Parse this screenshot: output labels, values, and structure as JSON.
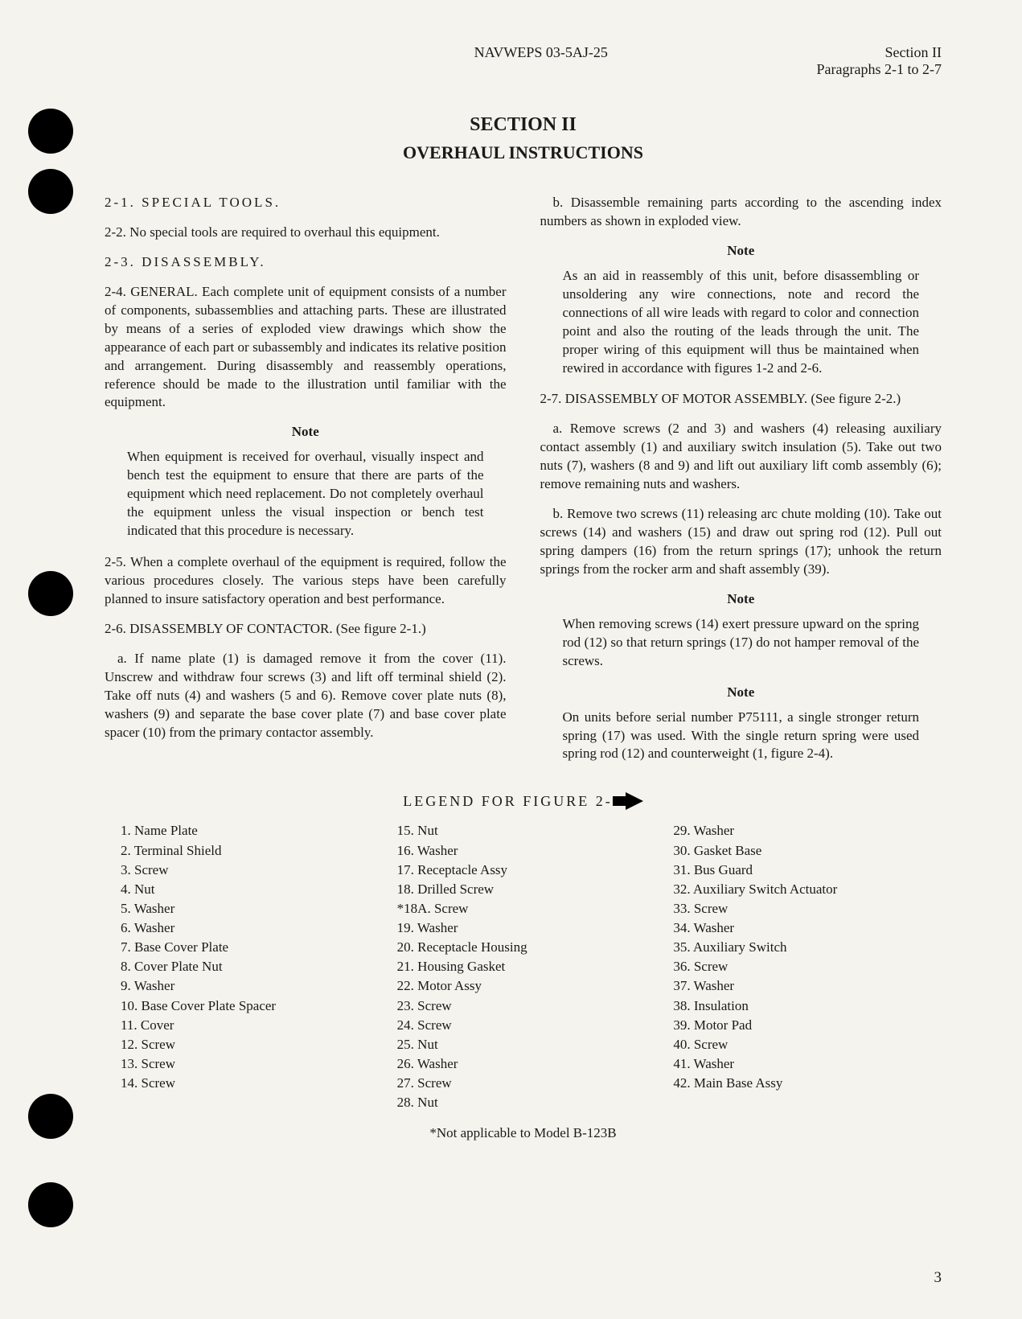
{
  "header": {
    "doc_id": "NAVWEPS 03-5AJ-25",
    "section": "Section II",
    "paragraphs": "Paragraphs 2-1 to 2-7"
  },
  "title": {
    "section": "SECTION II",
    "subtitle": "OVERHAUL INSTRUCTIONS"
  },
  "left_col": {
    "p21_heading": "2-1. SPECIAL TOOLS.",
    "p22": "2-2. No special tools are required to overhaul this equipment.",
    "p23_heading": "2-3. DISASSEMBLY.",
    "p24": "2-4. GENERAL. Each complete unit of equipment consists of a number of components, subassemblies and attaching parts. These are illustrated by means of a series of exploded view drawings which show the appearance of each part or subassembly and indicates its relative position and arrangement. During disassembly and reassembly operations, reference should be made to the illustration until familiar with the equipment.",
    "note1_label": "Note",
    "note1": "When equipment is received for overhaul, visually inspect and bench test the equipment to ensure that there are parts of the equipment which need replacement. Do not completely overhaul the equipment unless the visual inspection or bench test indicated that this procedure is necessary.",
    "p25": "2-5. When a complete overhaul of the equipment is required, follow the various procedures closely. The various steps have been carefully planned to insure satisfactory operation and best performance.",
    "p26": "2-6. DISASSEMBLY OF CONTACTOR. (See figure 2-1.)",
    "p26a": "a. If name plate (1) is damaged remove it from the cover (11). Unscrew and withdraw four screws (3) and lift off terminal shield (2). Take off nuts (4) and washers (5 and 6). Remove cover plate nuts (8), washers (9) and separate the base cover plate (7) and base cover plate spacer (10) from the primary contactor assembly."
  },
  "right_col": {
    "p26b": "b. Disassemble remaining parts according to the ascending index numbers as shown in exploded view.",
    "note2_label": "Note",
    "note2": "As an aid in reassembly of this unit, before disassembling or unsoldering any wire connections, note and record the connections of all wire leads with regard to color and connection point and also the routing of the leads through the unit. The proper wiring of this equipment will thus be maintained when rewired in accordance with figures 1-2 and 2-6.",
    "p27": "2-7. DISASSEMBLY OF MOTOR ASSEMBLY. (See figure 2-2.)",
    "p27a": "a. Remove screws (2 and 3) and washers (4) releasing auxiliary contact assembly (1) and auxiliary switch insulation (5). Take out two nuts (7), washers (8 and 9) and lift out auxiliary lift comb assembly (6); remove remaining nuts and washers.",
    "p27b": "b. Remove two screws (11) releasing arc chute molding (10). Take out screws (14) and washers (15) and draw out spring rod (12). Pull out spring dampers (16) from the return springs (17); unhook the return springs from the rocker arm and shaft assembly (39).",
    "note3_label": "Note",
    "note3": "When removing screws (14) exert pressure upward on the spring rod (12) so that return springs (17) do not hamper removal of the screws.",
    "note4_label": "Note",
    "note4": "On units before serial number P75111, a single stronger return spring (17) was used. With the single return spring were used spring rod (12) and counterweight (1, figure 2-4)."
  },
  "legend": {
    "title": "LEGEND FOR FIGURE 2-1",
    "col1": [
      "1. Name Plate",
      "2. Terminal Shield",
      "3. Screw",
      "4. Nut",
      "5. Washer",
      "6. Washer",
      "7. Base Cover Plate",
      "8. Cover Plate Nut",
      "9. Washer",
      "10. Base Cover Plate Spacer",
      "11. Cover",
      "12. Screw",
      "13. Screw",
      "14. Screw"
    ],
    "col2": [
      "15. Nut",
      "16. Washer",
      "17. Receptacle Assy",
      "18. Drilled Screw",
      "*18A. Screw",
      "19. Washer",
      "20. Receptacle Housing",
      "21. Housing Gasket",
      "22. Motor Assy",
      "23. Screw",
      "24. Screw",
      "25. Nut",
      "26. Washer",
      "27. Screw",
      "28. Nut"
    ],
    "col3": [
      "29. Washer",
      "30. Gasket Base",
      "31. Bus Guard",
      "32. Auxiliary Switch Actuator",
      "33. Screw",
      "34. Washer",
      "35. Auxiliary Switch",
      "36. Screw",
      "37. Washer",
      "38. Insulation",
      "39. Motor Pad",
      "40. Screw",
      "41. Washer",
      "42. Main Base Assy"
    ],
    "footnote": "*Not applicable to Model B-123B"
  },
  "page_number": "3",
  "punch_holes": [
    135,
    210,
    710,
    1360,
    1470
  ],
  "colors": {
    "background": "#f5f3ed",
    "text": "#1a1a1a",
    "hole": "#000000"
  }
}
